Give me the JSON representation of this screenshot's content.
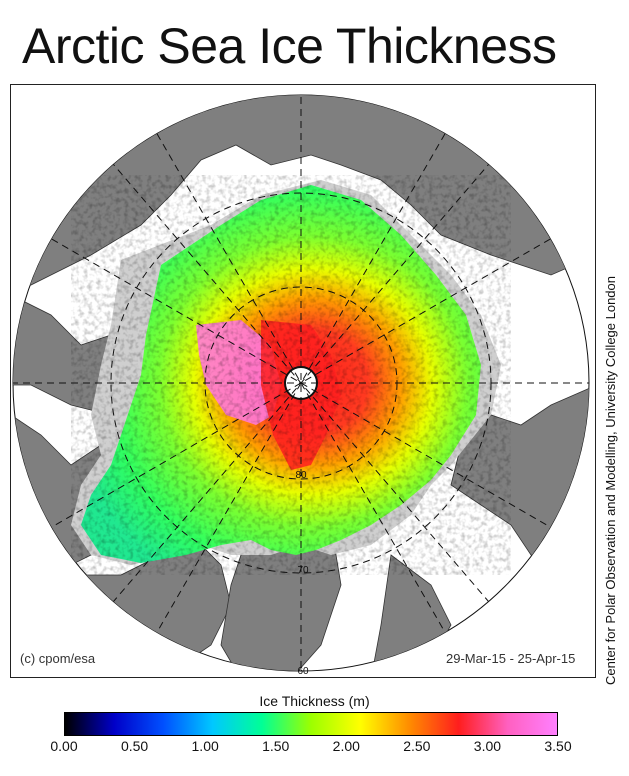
{
  "title": "Arctic Sea Ice Thickness",
  "credit": "(c) cpom/esa",
  "date_range": "29-Mar-15 - 25-Apr-15",
  "side_credit": "Center for Polar Observation and Modelling, University College London",
  "colorbar": {
    "title": "Ice Thickness (m)",
    "ticks": [
      "0.00",
      "0.50",
      "1.00",
      "1.50",
      "2.00",
      "2.50",
      "3.00",
      "3.50"
    ],
    "min": 0,
    "max": 3.5,
    "colors": [
      "#000000",
      "#0000c8",
      "#0050ff",
      "#00c8ff",
      "#00ff96",
      "#9cff00",
      "#ffff00",
      "#ff8c00",
      "#ff1e1e",
      "#ff60c0",
      "#ff80ff"
    ]
  },
  "map": {
    "projection": "polar stereographic",
    "latitude_labels": [
      "80",
      "70",
      "60"
    ],
    "land_color": "#7f7f7f",
    "ocean_color": "#ffffff",
    "unclassified_ice_color": "#cfcfcf"
  }
}
